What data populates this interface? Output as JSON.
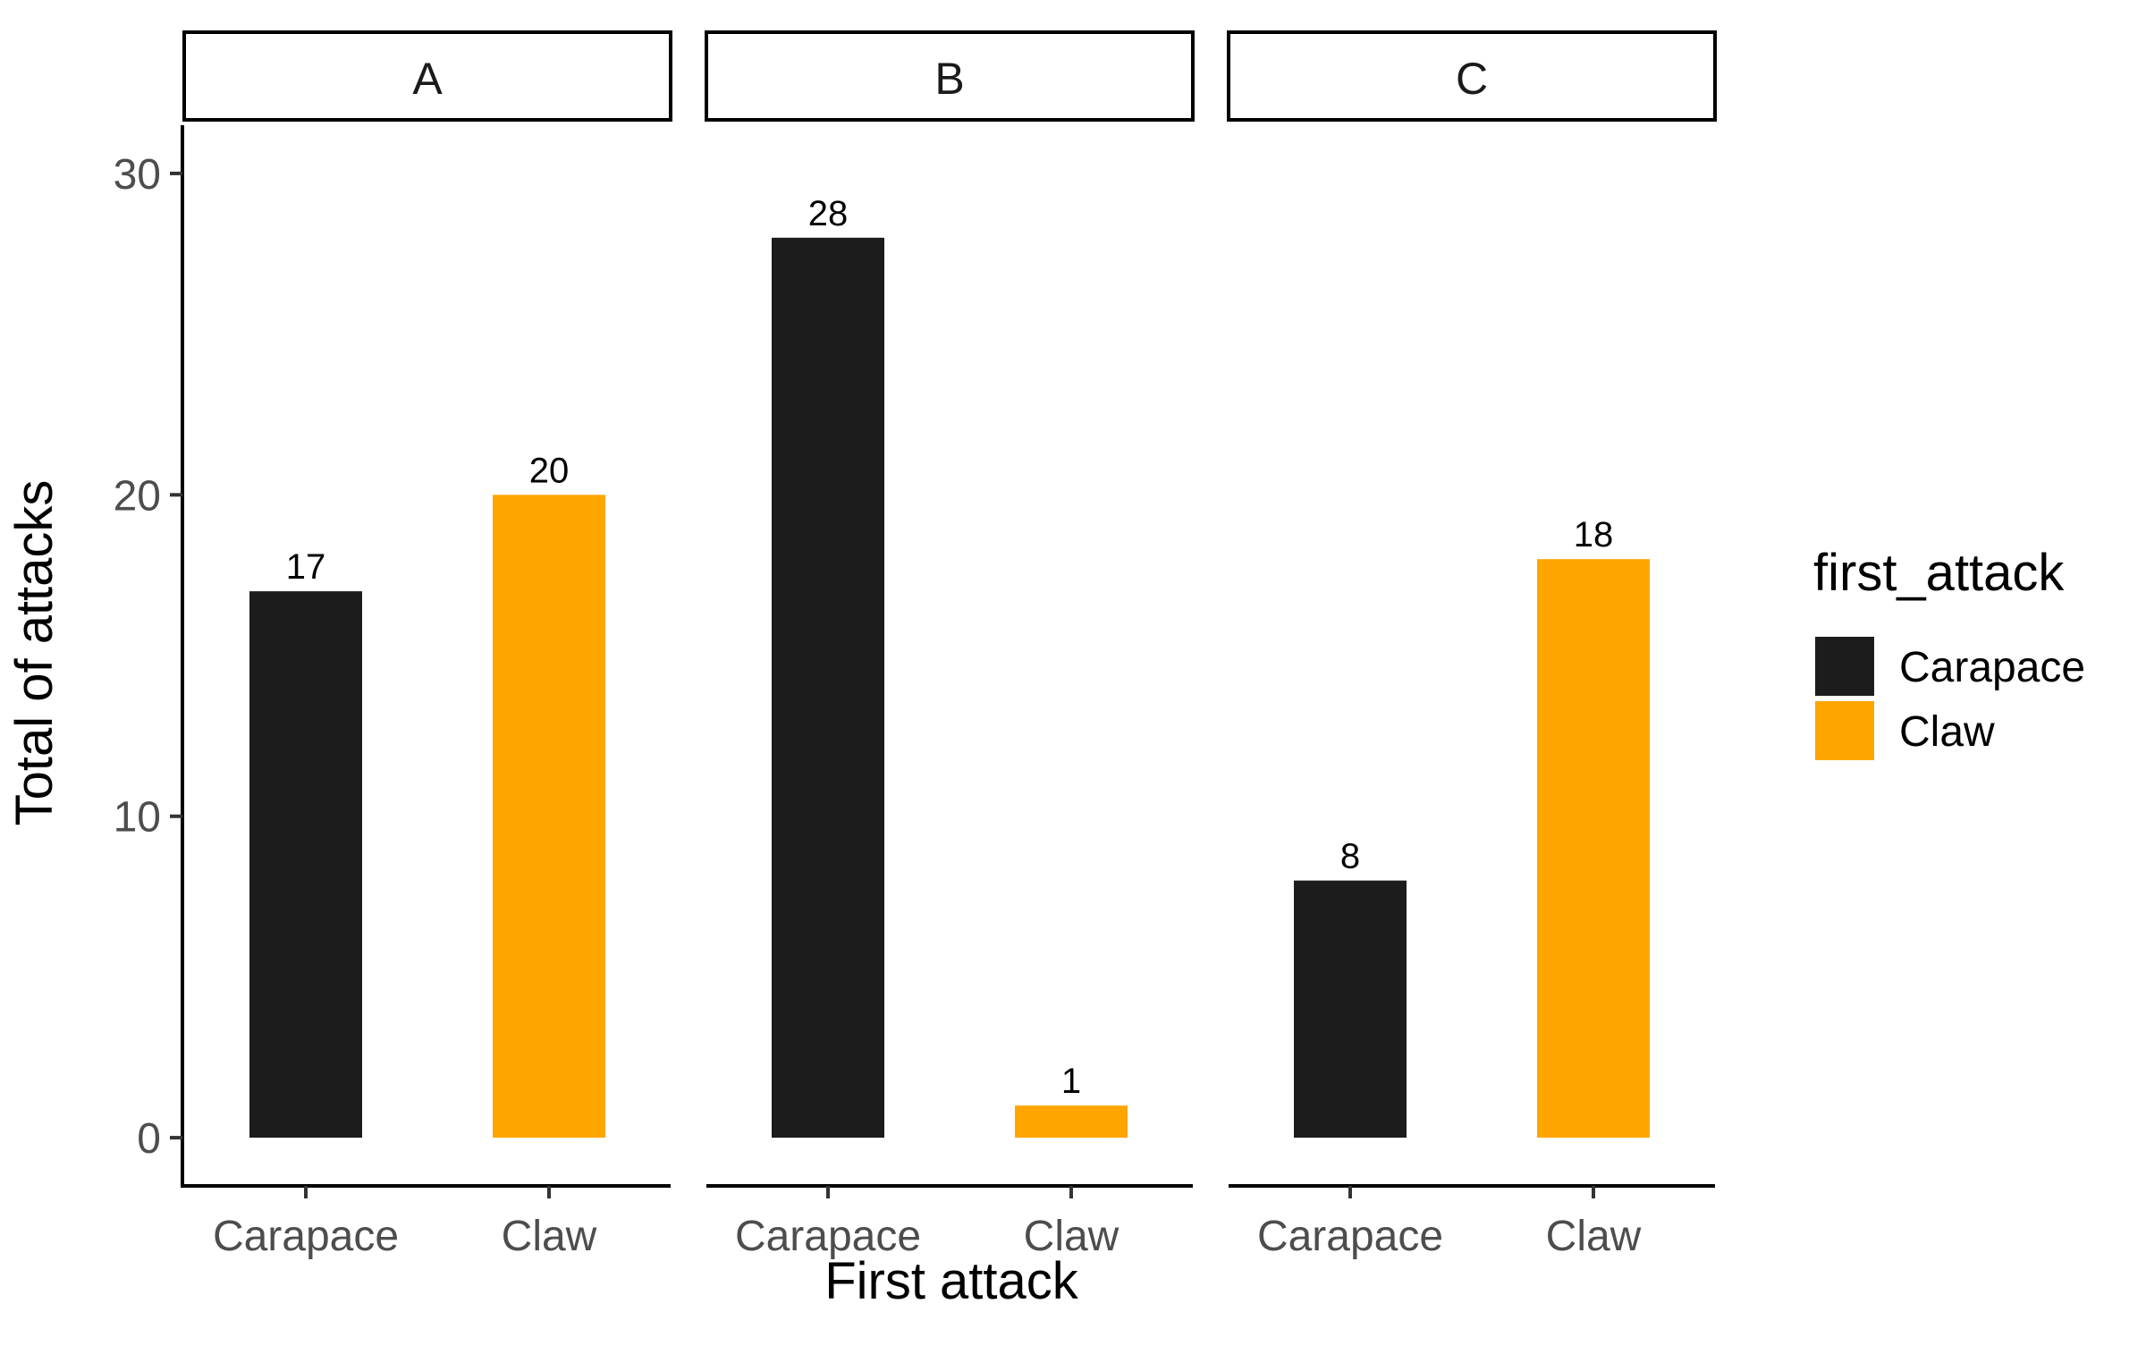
{
  "chart_data": {
    "type": "bar",
    "facets": [
      "A",
      "B",
      "C"
    ],
    "categories": [
      "Carapace",
      "Claw"
    ],
    "series": [
      {
        "facet": "A",
        "values": [
          17,
          20
        ]
      },
      {
        "facet": "B",
        "values": [
          28,
          1
        ]
      },
      {
        "facet": "C",
        "values": [
          8,
          18
        ]
      }
    ],
    "data_labels": true,
    "xlabel": "First attack",
    "ylabel": "Total of attacks",
    "ylim": [
      -1.5,
      31.5
    ],
    "yticks": [
      0,
      10,
      20,
      30
    ],
    "grid": false,
    "legend": {
      "title": "first_attack",
      "position": "right",
      "entries": [
        "Carapace",
        "Claw"
      ]
    },
    "colors": {
      "Carapace": "#1c1c1c",
      "Claw": "#ffa500"
    }
  }
}
